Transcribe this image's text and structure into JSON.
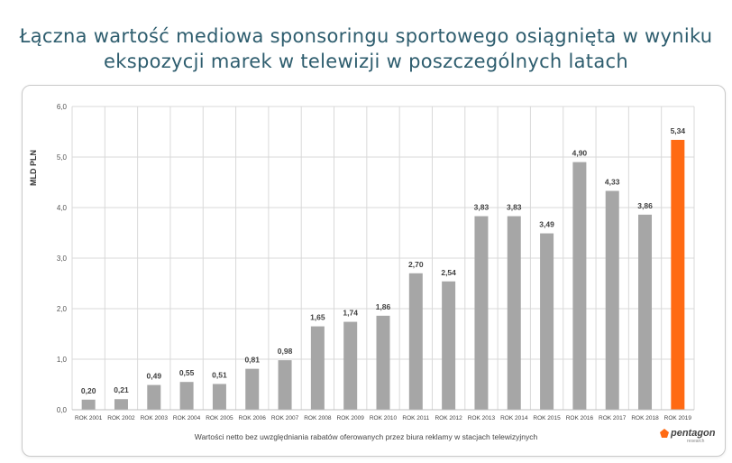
{
  "title_line1": "Łączna wartość mediowa sponsoringu sportowego osiągnięta w wyniku",
  "title_line2": "ekspozycji marek w telewizji w poszczególnych latach",
  "footnote": "Wartości netto bez uwzględniania rabatów oferowanych przez biura reklamy w stacjach telewizyjnych",
  "logo": {
    "name": "pentagon",
    "sub": "research"
  },
  "colors": {
    "bar": "#a6a6a6",
    "highlight": "#ff6a13",
    "title": "#2e5d6e",
    "grid": "#d9d9d9",
    "label": "#404040"
  },
  "chart_data": {
    "type": "bar",
    "title": "Łączna wartość mediowa sponsoringu sportowego osiągnięta w wyniku ekspozycji marek w telewizji w poszczególnych latach",
    "ylabel": "MLD PLN",
    "xlabel": "",
    "ylim": [
      0,
      6
    ],
    "yticks": [
      "0,0",
      "1,0",
      "2,0",
      "3,0",
      "4,0",
      "5,0",
      "6,0"
    ],
    "grid": true,
    "categories": [
      "ROK 2001",
      "ROK 2002",
      "ROK 2003",
      "ROK 2004",
      "ROK 2005",
      "ROK 2006",
      "ROK 2007",
      "ROK 2008",
      "ROK 2009",
      "ROK 2010",
      "ROK 2011",
      "ROK 2012",
      "ROK 2013",
      "ROK 2014",
      "ROK 2015",
      "ROK 2016",
      "ROK 2017",
      "ROK 2018",
      "ROK 2019"
    ],
    "values": [
      0.2,
      0.21,
      0.49,
      0.55,
      0.51,
      0.81,
      0.98,
      1.65,
      1.74,
      1.86,
      2.7,
      2.54,
      3.83,
      3.83,
      3.49,
      4.9,
      4.33,
      3.86,
      5.34
    ],
    "data_labels": [
      "0,20",
      "0,21",
      "0,49",
      "0,55",
      "0,51",
      "0,81",
      "0,98",
      "1,65",
      "1,74",
      "1,86",
      "2,70",
      "2,54",
      "3,83",
      "3,83",
      "3,49",
      "4,90",
      "4,33",
      "3,86",
      "5,34"
    ],
    "highlight_category": "ROK 2019"
  }
}
